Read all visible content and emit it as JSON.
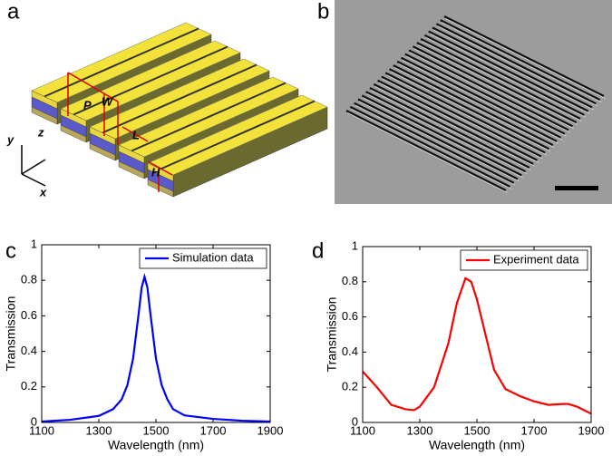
{
  "figure": {
    "panels": [
      "a",
      "b",
      "c",
      "d"
    ],
    "schematic_labels": [
      "P",
      "W",
      "L",
      "H",
      "x",
      "y",
      "z"
    ]
  },
  "chart_data": [
    {
      "type": "line",
      "xlabel": "Wavelength (nm)",
      "ylabel": "Transmission",
      "x": [
        1100,
        1200,
        1300,
        1350,
        1380,
        1400,
        1420,
        1440,
        1450,
        1460,
        1470,
        1480,
        1500,
        1520,
        1540,
        1560,
        1600,
        1700,
        1800,
        1900
      ],
      "series": [
        {
          "name": "Simulation data",
          "color": "#0000ff",
          "values": [
            0.005,
            0.015,
            0.037,
            0.075,
            0.13,
            0.21,
            0.36,
            0.62,
            0.76,
            0.82,
            0.76,
            0.62,
            0.36,
            0.21,
            0.13,
            0.075,
            0.04,
            0.02,
            0.01,
            0.005
          ]
        }
      ],
      "xlim": [
        1100,
        1900
      ],
      "ylim": [
        0,
        1
      ],
      "xticks": [
        1100,
        1300,
        1500,
        1700,
        1900
      ],
      "yticks": [
        0,
        0.2,
        0.4,
        0.6,
        0.8,
        1
      ],
      "legend": "upper right"
    },
    {
      "type": "line",
      "xlabel": "Wavelength (nm)",
      "ylabel": "Transmission",
      "x": [
        1100,
        1150,
        1200,
        1250,
        1280,
        1300,
        1350,
        1400,
        1430,
        1460,
        1480,
        1500,
        1530,
        1560,
        1600,
        1650,
        1700,
        1750,
        1800,
        1820,
        1850,
        1900
      ],
      "series": [
        {
          "name": "Experiment data",
          "color": "#ff0000",
          "values": [
            0.29,
            0.2,
            0.1,
            0.075,
            0.07,
            0.09,
            0.2,
            0.45,
            0.68,
            0.82,
            0.8,
            0.7,
            0.5,
            0.3,
            0.19,
            0.15,
            0.12,
            0.1,
            0.105,
            0.105,
            0.09,
            0.05
          ]
        }
      ],
      "xlim": [
        1100,
        1900
      ],
      "ylim": [
        0,
        1
      ],
      "xticks": [
        1100,
        1300,
        1500,
        1700,
        1900
      ],
      "yticks": [
        0,
        0.2,
        0.4,
        0.6,
        0.8,
        1
      ],
      "legend": "upper right"
    }
  ]
}
